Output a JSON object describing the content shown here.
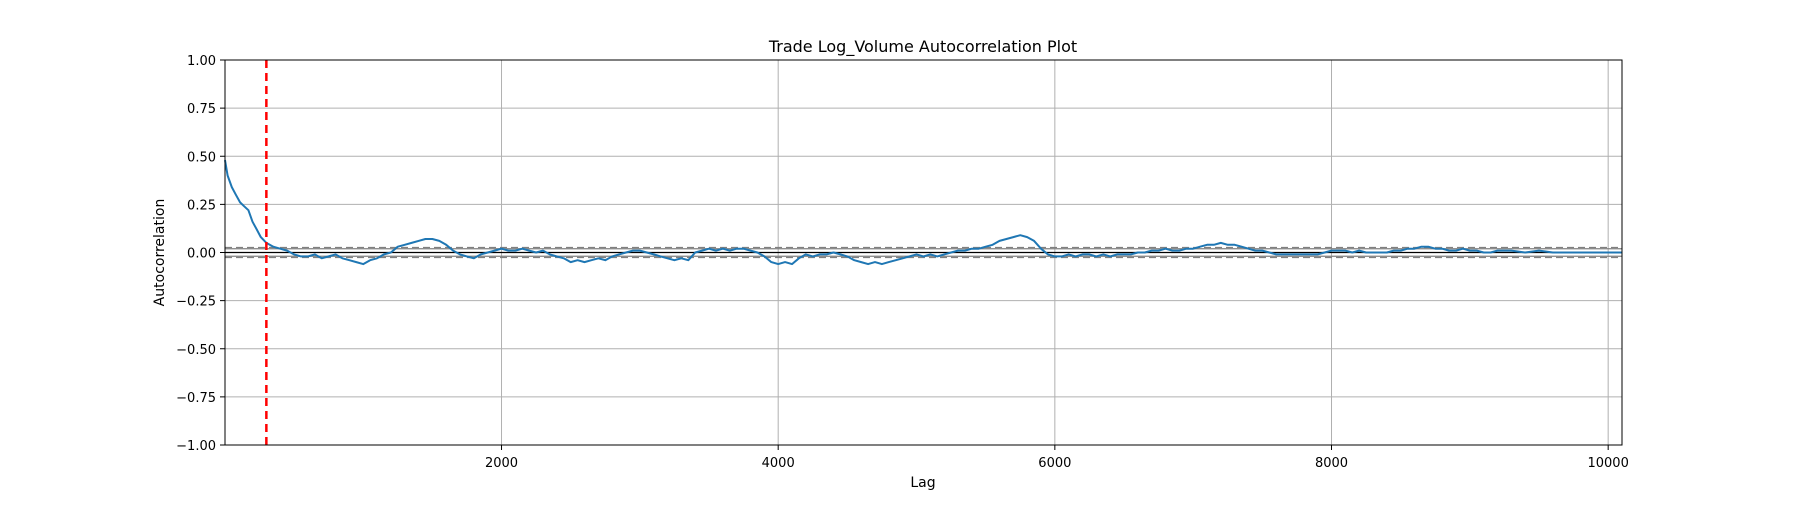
{
  "chart_data": {
    "type": "line",
    "title": "Trade Log_Volume Autocorrelation Plot",
    "xlabel": "Lag",
    "ylabel": "Autocorrelation",
    "xlim": [
      1,
      10100
    ],
    "ylim": [
      -1.0,
      1.0
    ],
    "grid": true,
    "x_ticks": [
      2000,
      4000,
      6000,
      8000,
      10000
    ],
    "x_tick_labels": [
      "2000",
      "4000",
      "6000",
      "8000",
      "10000"
    ],
    "y_ticks": [
      1.0,
      0.75,
      0.5,
      0.25,
      0.0,
      -0.25,
      -0.5,
      -0.75,
      -1.0
    ],
    "y_tick_labels": [
      "1.00",
      "0.75",
      "0.50",
      "0.25",
      "0.00",
      "−0.25",
      "−0.50",
      "−0.75",
      "−1.00"
    ],
    "confidence_bands": {
      "inner": [
        0.0196,
        -0.0196
      ],
      "outer": [
        0.0258,
        -0.0258
      ]
    },
    "vertical_marker": {
      "x": 300,
      "color": "#ff0000",
      "style": "dashed"
    },
    "series": [
      {
        "name": "autocorrelation",
        "color": "#1f77b4",
        "points": [
          [
            1,
            0.48
          ],
          [
            20,
            0.4
          ],
          [
            50,
            0.34
          ],
          [
            80,
            0.3
          ],
          [
            110,
            0.26
          ],
          [
            140,
            0.24
          ],
          [
            170,
            0.22
          ],
          [
            200,
            0.16
          ],
          [
            230,
            0.12
          ],
          [
            260,
            0.08
          ],
          [
            300,
            0.05
          ],
          [
            350,
            0.03
          ],
          [
            400,
            0.02
          ],
          [
            450,
            0.01
          ],
          [
            500,
            -0.01
          ],
          [
            550,
            -0.02
          ],
          [
            600,
            -0.02
          ],
          [
            650,
            -0.01
          ],
          [
            700,
            -0.03
          ],
          [
            750,
            -0.02
          ],
          [
            800,
            -0.01
          ],
          [
            850,
            -0.03
          ],
          [
            900,
            -0.04
          ],
          [
            950,
            -0.05
          ],
          [
            1000,
            -0.06
          ],
          [
            1050,
            -0.04
          ],
          [
            1100,
            -0.03
          ],
          [
            1150,
            -0.01
          ],
          [
            1200,
            0.0
          ],
          [
            1250,
            0.03
          ],
          [
            1300,
            0.04
          ],
          [
            1350,
            0.05
          ],
          [
            1400,
            0.06
          ],
          [
            1450,
            0.07
          ],
          [
            1500,
            0.07
          ],
          [
            1550,
            0.06
          ],
          [
            1600,
            0.04
          ],
          [
            1650,
            0.01
          ],
          [
            1700,
            -0.01
          ],
          [
            1750,
            -0.02
          ],
          [
            1800,
            -0.03
          ],
          [
            1850,
            -0.01
          ],
          [
            1900,
            0.0
          ],
          [
            1950,
            0.01
          ],
          [
            2000,
            0.02
          ],
          [
            2050,
            0.01
          ],
          [
            2100,
            0.01
          ],
          [
            2150,
            0.02
          ],
          [
            2200,
            0.01
          ],
          [
            2250,
            0.0
          ],
          [
            2300,
            0.01
          ],
          [
            2350,
            -0.01
          ],
          [
            2400,
            -0.02
          ],
          [
            2450,
            -0.03
          ],
          [
            2500,
            -0.05
          ],
          [
            2550,
            -0.04
          ],
          [
            2600,
            -0.05
          ],
          [
            2650,
            -0.04
          ],
          [
            2700,
            -0.03
          ],
          [
            2750,
            -0.04
          ],
          [
            2800,
            -0.02
          ],
          [
            2850,
            -0.01
          ],
          [
            2900,
            0.0
          ],
          [
            2950,
            0.01
          ],
          [
            3000,
            0.01
          ],
          [
            3050,
            0.0
          ],
          [
            3100,
            -0.01
          ],
          [
            3150,
            -0.02
          ],
          [
            3200,
            -0.03
          ],
          [
            3250,
            -0.04
          ],
          [
            3300,
            -0.03
          ],
          [
            3350,
            -0.04
          ],
          [
            3400,
            0.0
          ],
          [
            3450,
            0.01
          ],
          [
            3500,
            0.02
          ],
          [
            3550,
            0.01
          ],
          [
            3600,
            0.02
          ],
          [
            3650,
            0.01
          ],
          [
            3700,
            0.02
          ],
          [
            3750,
            0.02
          ],
          [
            3800,
            0.01
          ],
          [
            3850,
            0.0
          ],
          [
            3900,
            -0.02
          ],
          [
            3950,
            -0.05
          ],
          [
            4000,
            -0.06
          ],
          [
            4050,
            -0.05
          ],
          [
            4100,
            -0.06
          ],
          [
            4150,
            -0.03
          ],
          [
            4200,
            -0.01
          ],
          [
            4250,
            -0.02
          ],
          [
            4300,
            -0.01
          ],
          [
            4350,
            -0.01
          ],
          [
            4400,
            0.0
          ],
          [
            4450,
            -0.01
          ],
          [
            4500,
            -0.02
          ],
          [
            4550,
            -0.04
          ],
          [
            4600,
            -0.05
          ],
          [
            4650,
            -0.06
          ],
          [
            4700,
            -0.05
          ],
          [
            4750,
            -0.06
          ],
          [
            4800,
            -0.05
          ],
          [
            4850,
            -0.04
          ],
          [
            4900,
            -0.03
          ],
          [
            4950,
            -0.02
          ],
          [
            5000,
            -0.01
          ],
          [
            5050,
            -0.02
          ],
          [
            5100,
            -0.01
          ],
          [
            5150,
            -0.02
          ],
          [
            5200,
            -0.01
          ],
          [
            5250,
            0.0
          ],
          [
            5300,
            0.01
          ],
          [
            5350,
            0.01
          ],
          [
            5400,
            0.02
          ],
          [
            5450,
            0.02
          ],
          [
            5500,
            0.03
          ],
          [
            5550,
            0.04
          ],
          [
            5600,
            0.06
          ],
          [
            5650,
            0.07
          ],
          [
            5700,
            0.08
          ],
          [
            5750,
            0.09
          ],
          [
            5800,
            0.08
          ],
          [
            5850,
            0.06
          ],
          [
            5900,
            0.02
          ],
          [
            5950,
            -0.01
          ],
          [
            6000,
            -0.02
          ],
          [
            6050,
            -0.02
          ],
          [
            6100,
            -0.01
          ],
          [
            6150,
            -0.02
          ],
          [
            6200,
            -0.01
          ],
          [
            6250,
            -0.01
          ],
          [
            6300,
            -0.02
          ],
          [
            6350,
            -0.01
          ],
          [
            6400,
            -0.02
          ],
          [
            6450,
            -0.01
          ],
          [
            6500,
            -0.01
          ],
          [
            6550,
            -0.01
          ],
          [
            6600,
            0.0
          ],
          [
            6650,
            0.0
          ],
          [
            6700,
            0.01
          ],
          [
            6750,
            0.01
          ],
          [
            6800,
            0.02
          ],
          [
            6850,
            0.01
          ],
          [
            6900,
            0.01
          ],
          [
            6950,
            0.02
          ],
          [
            7000,
            0.02
          ],
          [
            7050,
            0.03
          ],
          [
            7100,
            0.04
          ],
          [
            7150,
            0.04
          ],
          [
            7200,
            0.05
          ],
          [
            7250,
            0.04
          ],
          [
            7300,
            0.04
          ],
          [
            7350,
            0.03
          ],
          [
            7400,
            0.02
          ],
          [
            7450,
            0.01
          ],
          [
            7500,
            0.01
          ],
          [
            7550,
            0.0
          ],
          [
            7600,
            -0.01
          ],
          [
            7650,
            -0.01
          ],
          [
            7700,
            -0.01
          ],
          [
            7750,
            -0.01
          ],
          [
            7800,
            -0.01
          ],
          [
            7850,
            -0.01
          ],
          [
            7900,
            -0.01
          ],
          [
            7950,
            0.0
          ],
          [
            8000,
            0.01
          ],
          [
            8050,
            0.01
          ],
          [
            8100,
            0.01
          ],
          [
            8150,
            0.0
          ],
          [
            8200,
            0.01
          ],
          [
            8250,
            0.0
          ],
          [
            8300,
            0.0
          ],
          [
            8350,
            0.0
          ],
          [
            8400,
            0.0
          ],
          [
            8450,
            0.01
          ],
          [
            8500,
            0.01
          ],
          [
            8550,
            0.02
          ],
          [
            8600,
            0.02
          ],
          [
            8650,
            0.03
          ],
          [
            8700,
            0.03
          ],
          [
            8750,
            0.02
          ],
          [
            8800,
            0.02
          ],
          [
            8850,
            0.01
          ],
          [
            8900,
            0.01
          ],
          [
            8950,
            0.02
          ],
          [
            9000,
            0.01
          ],
          [
            9050,
            0.01
          ],
          [
            9100,
            0.0
          ],
          [
            9150,
            0.0
          ],
          [
            9200,
            0.01
          ],
          [
            9300,
            0.01
          ],
          [
            9400,
            0.0
          ],
          [
            9500,
            0.01
          ],
          [
            9600,
            0.0
          ],
          [
            9700,
            0.0
          ],
          [
            9800,
            0.0
          ],
          [
            9900,
            0.0
          ],
          [
            10000,
            0.0
          ],
          [
            10100,
            0.0
          ]
        ]
      }
    ]
  }
}
